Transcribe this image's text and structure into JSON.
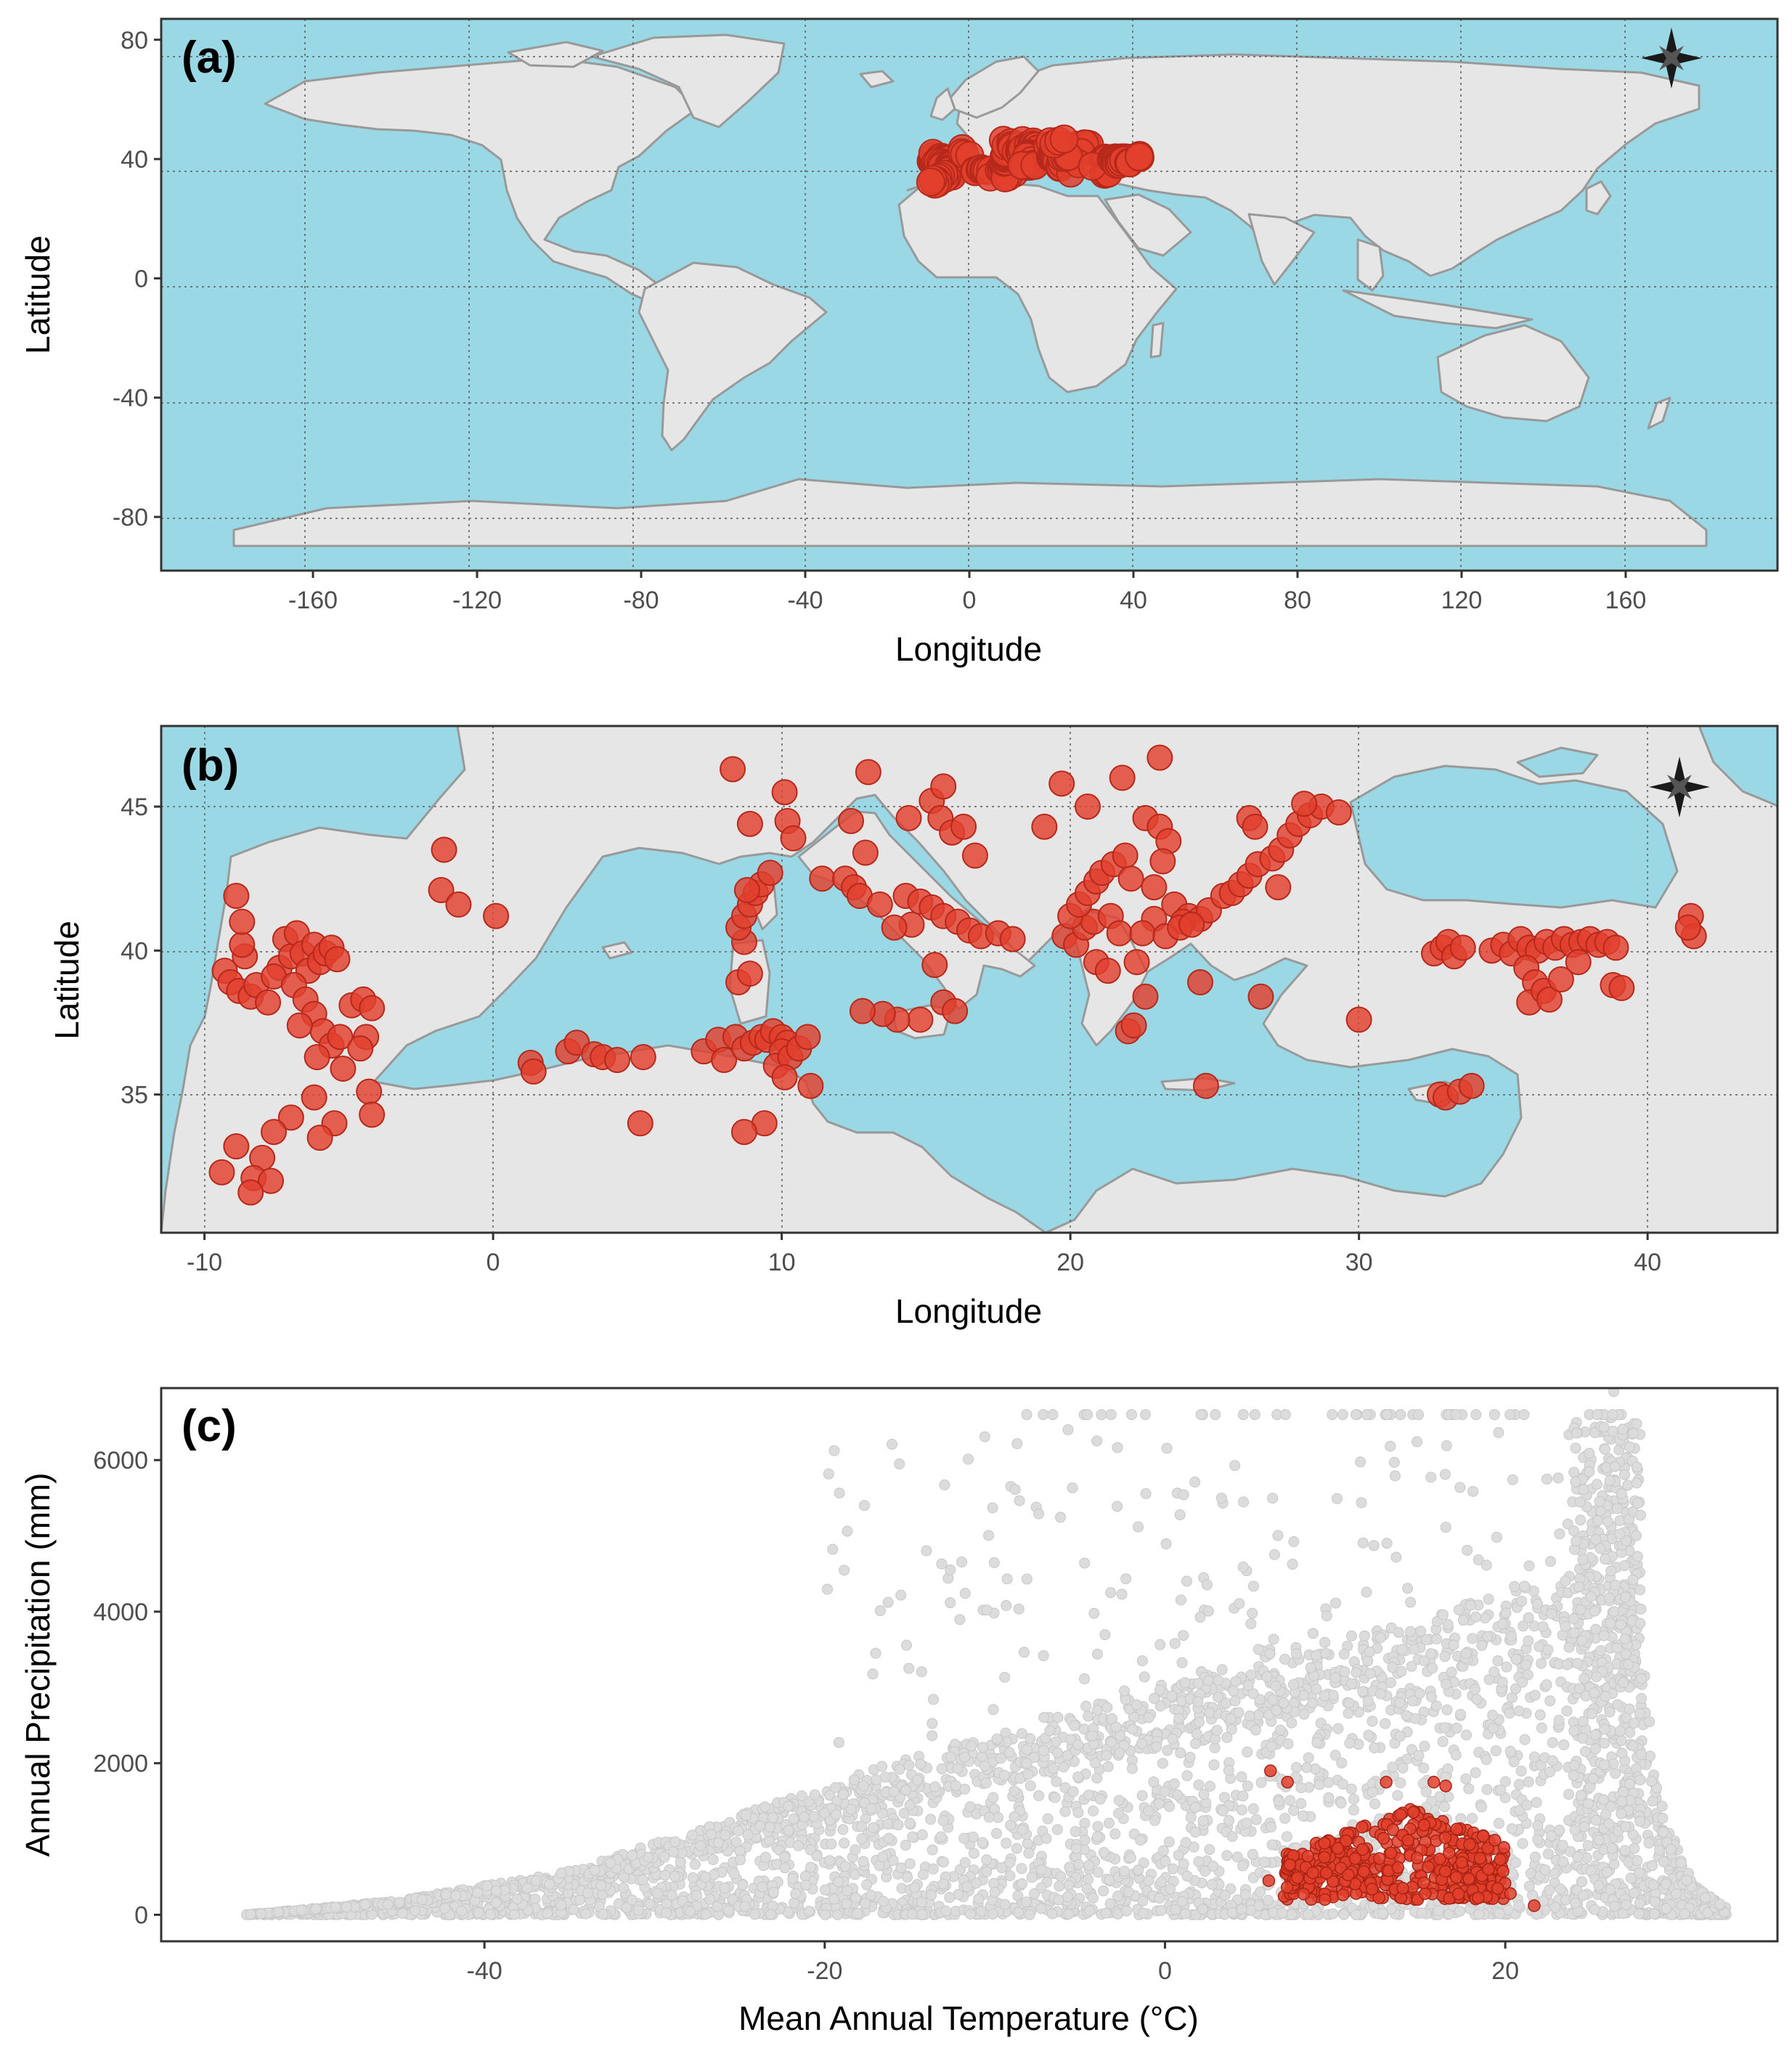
{
  "chart_data": [
    {
      "type": "map",
      "panel_label": "(a)",
      "xlabel": "Longitude",
      "ylabel": "Latitude",
      "xlim": [
        -197,
        197
      ],
      "ylim": [
        -98,
        87
      ],
      "xticks": [
        -160,
        -120,
        -80,
        -40,
        0,
        40,
        80,
        120,
        160
      ],
      "yticks": [
        -80,
        -40,
        0,
        40,
        80
      ],
      "grid": true,
      "colors": {
        "ocean": "#9ad8e6",
        "land": "#e6e6e6",
        "border": "#999999",
        "points": "#e2402d"
      },
      "compass": "north-arrow-star top-right",
      "points_extent": {
        "lon": [
          -9.5,
          42
        ],
        "lat": [
          31.5,
          47
        ]
      }
    },
    {
      "type": "map",
      "panel_label": "(b)",
      "xlabel": "Longitude",
      "ylabel": "Latitude",
      "xlim": [
        -11.5,
        44.5
      ],
      "ylim": [
        30.2,
        47.8
      ],
      "xticks": [
        -10,
        0,
        10,
        20,
        30,
        40
      ],
      "yticks": [
        35,
        40,
        45
      ],
      "grid": true,
      "colors": {
        "ocean": "#9ad8e6",
        "land": "#e6e6e6",
        "border": "#999999",
        "points": "#e2402d"
      },
      "compass": "north-arrow-star top-right",
      "points": [
        [
          -9.3,
          39.3
        ],
        [
          -9.1,
          38.9
        ],
        [
          -8.8,
          38.6
        ],
        [
          -8.6,
          39.8
        ],
        [
          -8.7,
          40.2
        ],
        [
          -8.7,
          41.0
        ],
        [
          -8.9,
          41.9
        ],
        [
          -8.4,
          38.4
        ],
        [
          -8.2,
          38.8
        ],
        [
          -7.8,
          38.2
        ],
        [
          -7.4,
          39.4
        ],
        [
          -7.2,
          40.4
        ],
        [
          -7.0,
          39.8
        ],
        [
          -6.8,
          40.6
        ],
        [
          -6.6,
          39.9
        ],
        [
          -6.4,
          39.3
        ],
        [
          -6.2,
          40.2
        ],
        [
          -6.0,
          39.6
        ],
        [
          -5.8,
          39.9
        ],
        [
          -5.6,
          40.1
        ],
        [
          -5.4,
          39.7
        ],
        [
          -7.6,
          39.1
        ],
        [
          -6.9,
          38.8
        ],
        [
          -6.5,
          38.3
        ],
        [
          -6.2,
          37.8
        ],
        [
          -5.9,
          37.2
        ],
        [
          -5.6,
          36.7
        ],
        [
          -6.1,
          36.3
        ],
        [
          -5.3,
          37.0
        ],
        [
          -6.7,
          37.4
        ],
        [
          -4.9,
          38.1
        ],
        [
          -4.5,
          38.3
        ],
        [
          -4.2,
          38.0
        ],
        [
          -4.4,
          37.0
        ],
        [
          -4.6,
          36.6
        ],
        [
          -5.2,
          35.9
        ],
        [
          -4.3,
          35.1
        ],
        [
          -4.2,
          34.3
        ],
        [
          -5.5,
          34.0
        ],
        [
          -6.0,
          33.5
        ],
        [
          -6.2,
          34.9
        ],
        [
          -7.0,
          34.2
        ],
        [
          -7.6,
          33.7
        ],
        [
          -8.0,
          32.8
        ],
        [
          -8.3,
          32.1
        ],
        [
          -7.7,
          32.0
        ],
        [
          -8.4,
          31.6
        ],
        [
          -8.9,
          33.2
        ],
        [
          -9.4,
          32.3
        ],
        [
          -1.7,
          43.5
        ],
        [
          -1.8,
          42.1
        ],
        [
          -1.2,
          41.6
        ],
        [
          0.1,
          41.2
        ],
        [
          1.3,
          36.1
        ],
        [
          1.4,
          35.8
        ],
        [
          2.6,
          36.5
        ],
        [
          2.9,
          36.8
        ],
        [
          3.5,
          36.4
        ],
        [
          3.8,
          36.3
        ],
        [
          4.3,
          36.2
        ],
        [
          5.2,
          36.3
        ],
        [
          5.1,
          34.0
        ],
        [
          7.3,
          36.5
        ],
        [
          7.8,
          36.9
        ],
        [
          8.0,
          36.2
        ],
        [
          8.4,
          37.0
        ],
        [
          8.7,
          36.6
        ],
        [
          9.0,
          36.8
        ],
        [
          9.3,
          37.0
        ],
        [
          9.5,
          36.9
        ],
        [
          9.7,
          37.2
        ],
        [
          10.0,
          37.0
        ],
        [
          10.2,
          36.8
        ],
        [
          10.0,
          36.5
        ],
        [
          9.8,
          36.0
        ],
        [
          10.3,
          36.3
        ],
        [
          10.6,
          36.6
        ],
        [
          10.9,
          37.0
        ],
        [
          11.0,
          35.3
        ],
        [
          10.1,
          35.6
        ],
        [
          9.4,
          34.0
        ],
        [
          8.7,
          33.7
        ],
        [
          8.5,
          38.9
        ],
        [
          8.9,
          39.2
        ],
        [
          8.7,
          40.3
        ],
        [
          8.5,
          40.8
        ],
        [
          8.7,
          41.2
        ],
        [
          8.9,
          41.6
        ],
        [
          9.1,
          42.0
        ],
        [
          9.3,
          42.3
        ],
        [
          9.6,
          42.7
        ],
        [
          8.8,
          42.1
        ],
        [
          8.3,
          46.3
        ],
        [
          8.9,
          44.4
        ],
        [
          10.1,
          45.5
        ],
        [
          10.2,
          44.5
        ],
        [
          10.4,
          43.9
        ],
        [
          11.4,
          42.5
        ],
        [
          12.4,
          44.5
        ],
        [
          13.0,
          46.2
        ],
        [
          12.2,
          42.5
        ],
        [
          12.5,
          42.2
        ],
        [
          12.7,
          41.9
        ],
        [
          13.4,
          41.6
        ],
        [
          12.9,
          43.4
        ],
        [
          14.4,
          44.6
        ],
        [
          15.2,
          45.2
        ],
        [
          15.6,
          45.7
        ],
        [
          15.5,
          44.6
        ],
        [
          15.9,
          44.1
        ],
        [
          16.3,
          44.3
        ],
        [
          16.7,
          43.3
        ],
        [
          14.3,
          41.9
        ],
        [
          14.8,
          41.7
        ],
        [
          15.2,
          41.5
        ],
        [
          15.6,
          41.2
        ],
        [
          16.1,
          41.0
        ],
        [
          16.5,
          40.7
        ],
        [
          16.9,
          40.5
        ],
        [
          17.5,
          40.6
        ],
        [
          18.0,
          40.4
        ],
        [
          14.5,
          40.9
        ],
        [
          13.9,
          40.8
        ],
        [
          15.3,
          39.5
        ],
        [
          15.6,
          38.2
        ],
        [
          14.8,
          37.6
        ],
        [
          14.0,
          37.6
        ],
        [
          13.5,
          37.8
        ],
        [
          12.8,
          37.9
        ],
        [
          16.0,
          37.9
        ],
        [
          19.1,
          44.3
        ],
        [
          19.7,
          45.8
        ],
        [
          19.8,
          40.5
        ],
        [
          20.2,
          40.2
        ],
        [
          20.5,
          40.8
        ],
        [
          20.8,
          41.0
        ],
        [
          20.0,
          41.2
        ],
        [
          20.3,
          41.6
        ],
        [
          20.6,
          42.0
        ],
        [
          20.9,
          42.4
        ],
        [
          21.1,
          42.7
        ],
        [
          21.5,
          43.0
        ],
        [
          21.9,
          43.3
        ],
        [
          22.1,
          42.5
        ],
        [
          21.4,
          41.2
        ],
        [
          21.7,
          40.6
        ],
        [
          20.9,
          39.6
        ],
        [
          21.3,
          39.3
        ],
        [
          22.3,
          39.6
        ],
        [
          22.0,
          37.2
        ],
        [
          22.2,
          37.4
        ],
        [
          22.6,
          38.4
        ],
        [
          22.6,
          44.6
        ],
        [
          23.1,
          44.3
        ],
        [
          23.4,
          43.8
        ],
        [
          23.2,
          43.1
        ],
        [
          22.9,
          42.2
        ],
        [
          23.6,
          41.6
        ],
        [
          24.1,
          41.2
        ],
        [
          24.5,
          41.1
        ],
        [
          24.8,
          41.4
        ],
        [
          25.3,
          41.9
        ],
        [
          25.6,
          42.0
        ],
        [
          25.9,
          42.3
        ],
        [
          26.2,
          42.6
        ],
        [
          26.5,
          43.0
        ],
        [
          26.2,
          44.6
        ],
        [
          26.4,
          44.3
        ],
        [
          27.0,
          43.2
        ],
        [
          27.3,
          43.5
        ],
        [
          27.6,
          44.0
        ],
        [
          27.9,
          44.4
        ],
        [
          28.3,
          44.7
        ],
        [
          28.7,
          45.0
        ],
        [
          29.3,
          44.8
        ],
        [
          28.1,
          45.1
        ],
        [
          27.2,
          42.2
        ],
        [
          24.5,
          38.9
        ],
        [
          24.7,
          35.3
        ],
        [
          26.6,
          38.4
        ],
        [
          23.9,
          41.0
        ],
        [
          22.9,
          41.1
        ],
        [
          22.5,
          40.6
        ],
        [
          23.3,
          40.5
        ],
        [
          23.8,
          40.8
        ],
        [
          24.2,
          40.9
        ],
        [
          20.6,
          45.0
        ],
        [
          21.8,
          46.0
        ],
        [
          23.1,
          46.7
        ],
        [
          32.6,
          39.9
        ],
        [
          32.9,
          40.1
        ],
        [
          33.1,
          40.3
        ],
        [
          33.3,
          39.8
        ],
        [
          33.6,
          40.1
        ],
        [
          32.8,
          35.0
        ],
        [
          33.0,
          34.9
        ],
        [
          33.5,
          35.1
        ],
        [
          33.9,
          35.3
        ],
        [
          30.0,
          37.6
        ],
        [
          34.6,
          40.0
        ],
        [
          35.0,
          40.2
        ],
        [
          35.3,
          39.9
        ],
        [
          35.6,
          40.4
        ],
        [
          35.9,
          40.1
        ],
        [
          36.2,
          40.0
        ],
        [
          36.5,
          40.3
        ],
        [
          36.8,
          40.1
        ],
        [
          37.1,
          40.4
        ],
        [
          37.4,
          40.2
        ],
        [
          37.7,
          40.3
        ],
        [
          38.0,
          40.4
        ],
        [
          38.3,
          40.2
        ],
        [
          38.6,
          40.3
        ],
        [
          38.9,
          40.1
        ],
        [
          35.8,
          39.4
        ],
        [
          36.1,
          38.9
        ],
        [
          35.9,
          38.2
        ],
        [
          36.4,
          38.6
        ],
        [
          36.6,
          38.3
        ],
        [
          37.0,
          39.0
        ],
        [
          37.6,
          39.6
        ],
        [
          38.8,
          38.8
        ],
        [
          39.1,
          38.7
        ],
        [
          41.5,
          41.2
        ],
        [
          41.6,
          40.5
        ],
        [
          41.4,
          40.8
        ]
      ]
    },
    {
      "type": "scatter",
      "panel_label": "(c)",
      "xlabel": "Mean Annual Temperature (°C)",
      "ylabel": "Annual Precipitation (mm)",
      "xlim": [
        -59,
        36
      ],
      "ylim": [
        -350,
        6950
      ],
      "xticks": [
        -40,
        -20,
        0,
        20
      ],
      "yticks": [
        0,
        2000,
        4000,
        6000
      ],
      "grid": false,
      "series": [
        {
          "kind": "background global climate points",
          "color": "#dcdcdc",
          "envelope": [
            [
              -54,
              0
            ],
            [
              -45,
              180
            ],
            [
              -35,
              550
            ],
            [
              -25,
              1250
            ],
            [
              -15,
              2000
            ],
            [
              -5,
              2600
            ],
            [
              5,
              3300
            ],
            [
              15,
              3700
            ],
            [
              24,
              4400
            ],
            [
              26,
              6600
            ],
            [
              27,
              6600
            ],
            [
              28,
              3500
            ],
            [
              29,
              1500
            ],
            [
              31,
              400
            ],
            [
              33,
              100
            ],
            [
              33,
              0
            ]
          ],
          "capped_value": 6600
        },
        {
          "kind": "species occurrence points",
          "color": "#e2402d",
          "x_range": [
            6.0,
            21.7
          ],
          "y_range": [
            100,
            1900
          ]
        }
      ]
    }
  ]
}
